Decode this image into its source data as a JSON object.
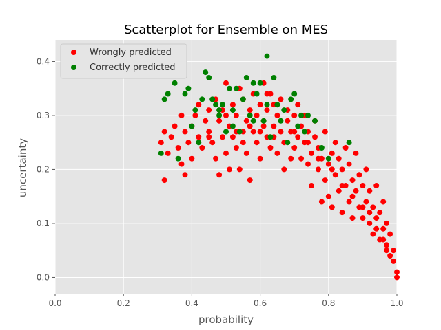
{
  "chart_data": {
    "type": "scatter",
    "title": "Scatterplot for Ensemble on MES",
    "xlabel": "probability",
    "ylabel": "uncertainty",
    "xlim": [
      0.0,
      1.0
    ],
    "ylim": [
      -0.03,
      0.44
    ],
    "xticks": [
      "0.0",
      "0.2",
      "0.4",
      "0.6",
      "0.8",
      "1.0"
    ],
    "yticks": [
      "0.0",
      "0.1",
      "0.2",
      "0.3",
      "0.4"
    ],
    "grid": true,
    "legend_position": "top-left",
    "series": [
      {
        "name": "Wrongly predicted",
        "color": "#ff0000",
        "points": [
          [
            0.32,
            0.18
          ],
          [
            0.31,
            0.25
          ],
          [
            0.32,
            0.27
          ],
          [
            0.33,
            0.23
          ],
          [
            0.34,
            0.26
          ],
          [
            0.35,
            0.28
          ],
          [
            0.36,
            0.24
          ],
          [
            0.37,
            0.21
          ],
          [
            0.37,
            0.3
          ],
          [
            0.38,
            0.19
          ],
          [
            0.38,
            0.27
          ],
          [
            0.39,
            0.25
          ],
          [
            0.4,
            0.28
          ],
          [
            0.4,
            0.22
          ],
          [
            0.41,
            0.3
          ],
          [
            0.42,
            0.26
          ],
          [
            0.42,
            0.32
          ],
          [
            0.43,
            0.24
          ],
          [
            0.44,
            0.29
          ],
          [
            0.45,
            0.27
          ],
          [
            0.45,
            0.31
          ],
          [
            0.46,
            0.25
          ],
          [
            0.47,
            0.33
          ],
          [
            0.47,
            0.22
          ],
          [
            0.48,
            0.29
          ],
          [
            0.48,
            0.19
          ],
          [
            0.49,
            0.26
          ],
          [
            0.49,
            0.31
          ],
          [
            0.5,
            0.23
          ],
          [
            0.5,
            0.36
          ],
          [
            0.51,
            0.28
          ],
          [
            0.51,
            0.2
          ],
          [
            0.52,
            0.32
          ],
          [
            0.52,
            0.26
          ],
          [
            0.53,
            0.3
          ],
          [
            0.53,
            0.24
          ],
          [
            0.54,
            0.35
          ],
          [
            0.54,
            0.2
          ],
          [
            0.55,
            0.27
          ],
          [
            0.55,
            0.33
          ],
          [
            0.56,
            0.29
          ],
          [
            0.56,
            0.23
          ],
          [
            0.57,
            0.31
          ],
          [
            0.57,
            0.18
          ],
          [
            0.58,
            0.27
          ],
          [
            0.58,
            0.34
          ],
          [
            0.59,
            0.25
          ],
          [
            0.59,
            0.3
          ],
          [
            0.6,
            0.32
          ],
          [
            0.6,
            0.22
          ],
          [
            0.61,
            0.29
          ],
          [
            0.61,
            0.36
          ],
          [
            0.62,
            0.26
          ],
          [
            0.62,
            0.31
          ],
          [
            0.63,
            0.24
          ],
          [
            0.63,
            0.34
          ],
          [
            0.64,
            0.28
          ],
          [
            0.64,
            0.32
          ],
          [
            0.65,
            0.23
          ],
          [
            0.65,
            0.3
          ],
          [
            0.66,
            0.27
          ],
          [
            0.66,
            0.33
          ],
          [
            0.67,
            0.25
          ],
          [
            0.67,
            0.2
          ],
          [
            0.68,
            0.29
          ],
          [
            0.68,
            0.31
          ],
          [
            0.69,
            0.22
          ],
          [
            0.69,
            0.27
          ],
          [
            0.7,
            0.3
          ],
          [
            0.7,
            0.24
          ],
          [
            0.71,
            0.26
          ],
          [
            0.71,
            0.32
          ],
          [
            0.72,
            0.22
          ],
          [
            0.72,
            0.28
          ],
          [
            0.73,
            0.25
          ],
          [
            0.73,
            0.3
          ],
          [
            0.74,
            0.21
          ],
          [
            0.74,
            0.27
          ],
          [
            0.75,
            0.23
          ],
          [
            0.75,
            0.17
          ],
          [
            0.76,
            0.26
          ],
          [
            0.76,
            0.29
          ],
          [
            0.77,
            0.2
          ],
          [
            0.77,
            0.24
          ],
          [
            0.78,
            0.14
          ],
          [
            0.78,
            0.22
          ],
          [
            0.79,
            0.18
          ],
          [
            0.79,
            0.27
          ],
          [
            0.8,
            0.21
          ],
          [
            0.8,
            0.15
          ],
          [
            0.81,
            0.23
          ],
          [
            0.81,
            0.13
          ],
          [
            0.82,
            0.19
          ],
          [
            0.82,
            0.25
          ],
          [
            0.83,
            0.16
          ],
          [
            0.83,
            0.22
          ],
          [
            0.84,
            0.12
          ],
          [
            0.84,
            0.2
          ],
          [
            0.85,
            0.17
          ],
          [
            0.85,
            0.24
          ],
          [
            0.86,
            0.14
          ],
          [
            0.86,
            0.21
          ],
          [
            0.87,
            0.11
          ],
          [
            0.87,
            0.18
          ],
          [
            0.88,
            0.16
          ],
          [
            0.88,
            0.23
          ],
          [
            0.89,
            0.13
          ],
          [
            0.89,
            0.19
          ],
          [
            0.9,
            0.11
          ],
          [
            0.9,
            0.17
          ],
          [
            0.91,
            0.14
          ],
          [
            0.91,
            0.2
          ],
          [
            0.92,
            0.1
          ],
          [
            0.92,
            0.16
          ],
          [
            0.93,
            0.08
          ],
          [
            0.93,
            0.13
          ],
          [
            0.94,
            0.11
          ],
          [
            0.94,
            0.17
          ],
          [
            0.95,
            0.07
          ],
          [
            0.95,
            0.12
          ],
          [
            0.96,
            0.09
          ],
          [
            0.96,
            0.14
          ],
          [
            0.97,
            0.06
          ],
          [
            0.97,
            0.1
          ],
          [
            0.98,
            0.04
          ],
          [
            0.98,
            0.08
          ],
          [
            0.99,
            0.03
          ],
          [
            0.99,
            0.05
          ],
          [
            1.0,
            0.01
          ],
          [
            1.0,
            0.0
          ],
          [
            0.61,
            0.28
          ],
          [
            0.62,
            0.34
          ],
          [
            0.5,
            0.3
          ],
          [
            0.45,
            0.26
          ],
          [
            0.55,
            0.25
          ],
          [
            0.6,
            0.27
          ],
          [
            0.64,
            0.26
          ],
          [
            0.7,
            0.27
          ],
          [
            0.74,
            0.25
          ],
          [
            0.77,
            0.22
          ],
          [
            0.81,
            0.2
          ],
          [
            0.84,
            0.17
          ],
          [
            0.87,
            0.15
          ],
          [
            0.9,
            0.13
          ],
          [
            0.92,
            0.12
          ],
          [
            0.94,
            0.09
          ],
          [
            0.96,
            0.07
          ],
          [
            0.97,
            0.05
          ],
          [
            0.53,
            0.27
          ],
          [
            0.57,
            0.28
          ]
        ]
      },
      {
        "name": "Correctly predicted",
        "color": "#008000",
        "points": [
          [
            0.31,
            0.23
          ],
          [
            0.32,
            0.33
          ],
          [
            0.33,
            0.34
          ],
          [
            0.35,
            0.36
          ],
          [
            0.36,
            0.22
          ],
          [
            0.38,
            0.34
          ],
          [
            0.39,
            0.35
          ],
          [
            0.4,
            0.28
          ],
          [
            0.41,
            0.31
          ],
          [
            0.42,
            0.25
          ],
          [
            0.43,
            0.33
          ],
          [
            0.44,
            0.38
          ],
          [
            0.45,
            0.37
          ],
          [
            0.46,
            0.33
          ],
          [
            0.47,
            0.32
          ],
          [
            0.48,
            0.3
          ],
          [
            0.49,
            0.32
          ],
          [
            0.5,
            0.27
          ],
          [
            0.51,
            0.35
          ],
          [
            0.52,
            0.31
          ],
          [
            0.53,
            0.35
          ],
          [
            0.54,
            0.27
          ],
          [
            0.55,
            0.33
          ],
          [
            0.56,
            0.37
          ],
          [
            0.57,
            0.3
          ],
          [
            0.58,
            0.36
          ],
          [
            0.59,
            0.34
          ],
          [
            0.6,
            0.36
          ],
          [
            0.61,
            0.29
          ],
          [
            0.62,
            0.41
          ],
          [
            0.63,
            0.26
          ],
          [
            0.64,
            0.37
          ],
          [
            0.65,
            0.32
          ],
          [
            0.66,
            0.29
          ],
          [
            0.67,
            0.31
          ],
          [
            0.68,
            0.25
          ],
          [
            0.69,
            0.33
          ],
          [
            0.7,
            0.34
          ],
          [
            0.71,
            0.28
          ],
          [
            0.72,
            0.3
          ],
          [
            0.73,
            0.27
          ],
          [
            0.74,
            0.3
          ],
          [
            0.76,
            0.29
          ],
          [
            0.78,
            0.24
          ],
          [
            0.8,
            0.22
          ],
          [
            0.86,
            0.25
          ],
          [
            0.62,
            0.32
          ],
          [
            0.58,
            0.29
          ],
          [
            0.52,
            0.28
          ],
          [
            0.48,
            0.31
          ]
        ]
      }
    ]
  }
}
